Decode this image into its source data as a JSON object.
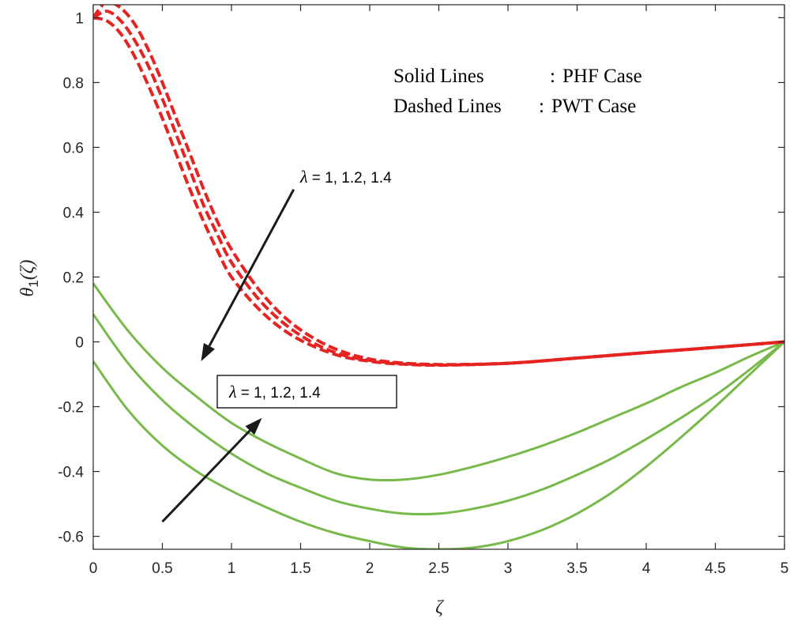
{
  "chart_data": {
    "type": "line",
    "title": "",
    "xlabel": "ζ",
    "ylabel_main": "θ",
    "ylabel_sub": "1",
    "ylabel_arg": "(ζ)",
    "xlim": [
      0,
      5
    ],
    "ylim": [
      -0.64,
      1.04
    ],
    "xticks": [
      0,
      0.5,
      1,
      1.5,
      2,
      2.5,
      3,
      3.5,
      4,
      4.5,
      5
    ],
    "xtick_labels": [
      "0",
      "0.5",
      "1",
      "1.5",
      "2",
      "2.5",
      "3",
      "3.5",
      "4",
      "4.5",
      "5"
    ],
    "yticks": [
      -0.6,
      -0.4,
      -0.2,
      0,
      0.2,
      0.4,
      0.6,
      0.8,
      1
    ],
    "ytick_labels": [
      "-0.6",
      "-0.4",
      "-0.2",
      "0",
      "0.2",
      "0.4",
      "0.6",
      "0.8",
      "1"
    ],
    "grid": false,
    "legend": {
      "lines": [
        {
          "name": "Solid Lines",
          "sep": ":",
          "desc": "PHF Case"
        },
        {
          "name": "Dashed Lines",
          "sep": ":",
          "desc": "PWT Case"
        }
      ]
    },
    "annotations": [
      {
        "lam": "λ",
        "text": " = 1, 1.2, 1.4",
        "boxed": false
      },
      {
        "lam": "λ",
        "text": " = 1, 1.2, 1.4",
        "boxed": true
      }
    ],
    "colors": {
      "phf": "#77b94a",
      "pwt": "#e52421",
      "arrow": "#1a1a1a",
      "axis": "#262626"
    },
    "series": [
      {
        "style": "solid",
        "color": "#77b94a",
        "x": [
          0,
          0.25,
          0.5,
          0.75,
          1,
          1.25,
          1.5,
          1.75,
          2,
          2.25,
          2.5,
          2.75,
          3,
          3.25,
          3.5,
          3.75,
          4,
          4.25,
          4.5,
          4.75,
          5
        ],
        "y": [
          0.18,
          0.035,
          -0.08,
          -0.17,
          -0.25,
          -0.31,
          -0.36,
          -0.405,
          -0.425,
          -0.425,
          -0.41,
          -0.385,
          -0.355,
          -0.32,
          -0.28,
          -0.235,
          -0.19,
          -0.14,
          -0.095,
          -0.045,
          0
        ]
      },
      {
        "style": "solid",
        "color": "#77b94a",
        "x": [
          0,
          0.25,
          0.5,
          0.75,
          1,
          1.25,
          1.5,
          1.75,
          2,
          2.25,
          2.5,
          2.75,
          3,
          3.25,
          3.5,
          3.75,
          4,
          4.25,
          4.5,
          4.75,
          5
        ],
        "y": [
          0.085,
          -0.065,
          -0.18,
          -0.27,
          -0.345,
          -0.405,
          -0.45,
          -0.49,
          -0.515,
          -0.53,
          -0.53,
          -0.515,
          -0.49,
          -0.455,
          -0.41,
          -0.36,
          -0.3,
          -0.235,
          -0.165,
          -0.085,
          0
        ]
      },
      {
        "style": "solid",
        "color": "#77b94a",
        "x": [
          0,
          0.25,
          0.5,
          0.75,
          1,
          1.25,
          1.5,
          1.75,
          2,
          2.25,
          2.5,
          2.75,
          3,
          3.25,
          3.5,
          3.75,
          4,
          4.25,
          4.5,
          4.75,
          5
        ],
        "y": [
          -0.06,
          -0.21,
          -0.32,
          -0.4,
          -0.46,
          -0.51,
          -0.555,
          -0.59,
          -0.615,
          -0.635,
          -0.64,
          -0.635,
          -0.615,
          -0.58,
          -0.53,
          -0.465,
          -0.385,
          -0.295,
          -0.2,
          -0.1,
          0
        ]
      },
      {
        "style": "dashed",
        "color": "#e52421",
        "x": [
          0,
          0.1,
          0.2,
          0.3,
          0.4,
          0.5,
          0.6,
          0.7,
          0.8,
          0.9,
          1,
          1.2,
          1.4,
          1.6,
          1.8,
          2,
          2.2,
          2.5,
          3,
          3.5,
          4,
          4.5,
          5
        ],
        "y": [
          1.0,
          0.99,
          0.95,
          0.88,
          0.79,
          0.69,
          0.58,
          0.47,
          0.37,
          0.28,
          0.2,
          0.1,
          0.03,
          -0.015,
          -0.045,
          -0.06,
          -0.068,
          -0.072,
          -0.066,
          -0.05,
          -0.033,
          -0.017,
          0
        ]
      },
      {
        "style": "dashed",
        "color": "#e52421",
        "x": [
          0,
          0.1,
          0.2,
          0.3,
          0.4,
          0.5,
          0.6,
          0.7,
          0.8,
          0.9,
          1,
          1.2,
          1.4,
          1.6,
          1.8,
          2,
          2.2,
          2.5,
          3,
          3.5,
          4,
          4.5,
          5
        ],
        "y": [
          1.0,
          1.02,
          0.99,
          0.93,
          0.85,
          0.75,
          0.64,
          0.53,
          0.42,
          0.33,
          0.245,
          0.13,
          0.05,
          -0.005,
          -0.04,
          -0.057,
          -0.066,
          -0.071,
          -0.066,
          -0.05,
          -0.033,
          -0.017,
          0
        ]
      },
      {
        "style": "dashed",
        "color": "#e52421",
        "x": [
          0,
          0.05,
          0.1,
          0.2,
          0.3,
          0.4,
          0.5,
          0.6,
          0.7,
          0.8,
          0.9,
          1,
          1.2,
          1.4,
          1.6,
          1.8,
          2,
          2.2,
          2.5,
          3,
          3.5,
          4,
          4.5,
          5
        ],
        "y": [
          1.0,
          1.03,
          1.05,
          1.03,
          0.98,
          0.9,
          0.8,
          0.69,
          0.58,
          0.47,
          0.37,
          0.285,
          0.16,
          0.07,
          0.01,
          -0.03,
          -0.053,
          -0.064,
          -0.07,
          -0.066,
          -0.05,
          -0.033,
          -0.017,
          0
        ]
      }
    ],
    "arrows": [
      {
        "from": [
          1.45,
          0.47
        ],
        "to": [
          0.78,
          -0.06
        ]
      },
      {
        "from": [
          0.5,
          -0.555
        ],
        "to": [
          1.22,
          -0.235
        ]
      }
    ]
  }
}
